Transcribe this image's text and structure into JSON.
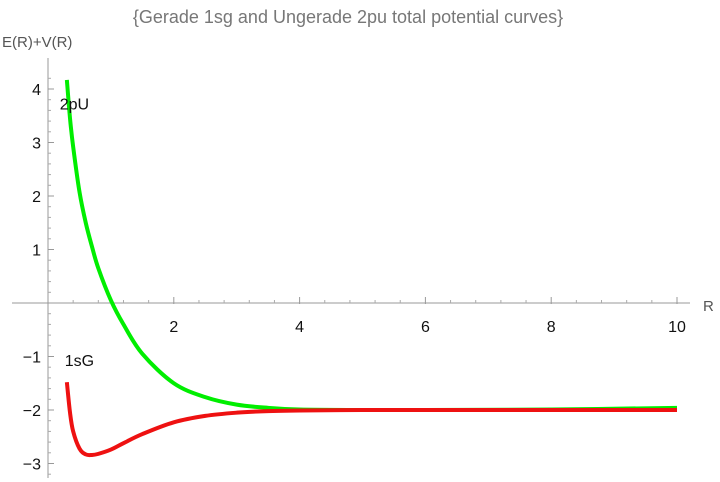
{
  "chart_data": {
    "type": "line",
    "title": "{Gerade 1sg and Ungerade 2pu total potential curves}",
    "xlabel": "R",
    "ylabel": "E(R)+V(R)",
    "xlim": [
      0,
      10.5
    ],
    "ylim": [
      -3.2,
      4.5
    ],
    "x_ticks": [
      2,
      4,
      6,
      8,
      10
    ],
    "x_tick_labels": [
      "2",
      "4",
      "6",
      "8",
      "10"
    ],
    "y_ticks": [
      -3,
      -2,
      -1,
      1,
      2,
      3,
      4
    ],
    "y_tick_labels": [
      "−3",
      "−2",
      "−1",
      "1",
      "2",
      "3",
      "4"
    ],
    "grid": false,
    "series": [
      {
        "name": "2pU",
        "color": "#00ee00",
        "x": [
          0.3,
          0.35,
          0.4,
          0.5,
          0.6,
          0.7,
          0.8,
          1.0,
          1.2,
          1.5,
          2.0,
          2.5,
          3.0,
          3.5,
          4.0,
          5.0,
          6.0,
          8.0,
          10.0
        ],
        "y": [
          4.17,
          3.45,
          2.92,
          2.08,
          1.5,
          1.05,
          0.65,
          0.05,
          -0.4,
          -0.95,
          -1.5,
          -1.76,
          -1.9,
          -1.96,
          -1.99,
          -2.0,
          -2.0,
          -1.99,
          -1.96
        ]
      },
      {
        "name": "1sG",
        "color": "#ee1111",
        "x": [
          0.3,
          0.35,
          0.4,
          0.5,
          0.6,
          0.7,
          0.8,
          1.0,
          1.2,
          1.5,
          2.0,
          2.5,
          3.0,
          3.5,
          4.0,
          5.0,
          6.0,
          8.0,
          10.0
        ],
        "y": [
          -1.48,
          -2.05,
          -2.4,
          -2.72,
          -2.83,
          -2.84,
          -2.82,
          -2.74,
          -2.62,
          -2.45,
          -2.23,
          -2.11,
          -2.05,
          -2.02,
          -2.01,
          -2.0,
          -2.0,
          -2.0,
          -2.0
        ]
      }
    ],
    "annotations": [
      {
        "text": "2pU",
        "x": 0.42,
        "y": 3.62
      },
      {
        "text": "1sG",
        "x": 0.5,
        "y": -1.18
      }
    ]
  }
}
